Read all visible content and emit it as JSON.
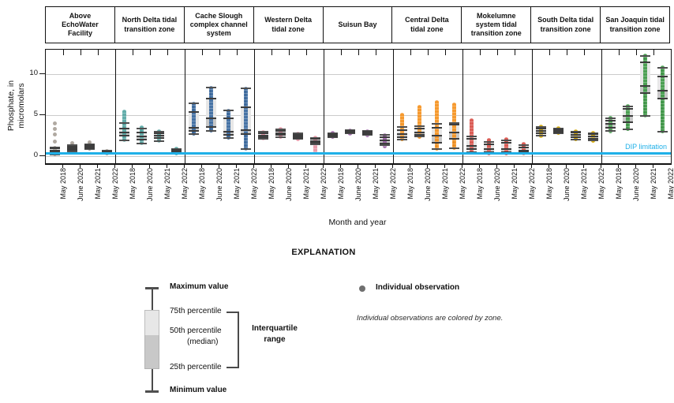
{
  "labels": {
    "explanation_title": "EXPLANATION",
    "x_axis_title": "Month and year"
  },
  "axes": {
    "y_label_line1": "Phosphate, in",
    "y_label_line2": "micromolars"
  },
  "chart_data": {
    "type": "boxplot",
    "title": "",
    "xlabel": "Month and year",
    "ylabel": "Phosphate, in micromolars",
    "categories": [
      "May 2018",
      "June 2020",
      "May 2021",
      "May 2022"
    ],
    "ylim": [
      -0.9,
      13
    ],
    "yticks": [
      0,
      5,
      10
    ],
    "grid": true,
    "legend_position": "below",
    "reference_line": {
      "label": "DIP limitation",
      "value": 0.35,
      "color": "#1fb0e8"
    },
    "zones": [
      {
        "name": "Above EchoWater Facility",
        "color": "#9c948a",
        "boxes": [
          {
            "whislo": 0.2,
            "q1": 0.45,
            "med": 0.7,
            "q3": 0.95,
            "whishi": 1.1,
            "dots": [
              0.2,
              1.1
            ],
            "outliers": [
              1.8,
              2.6,
              3.3,
              4.0
            ]
          },
          {
            "whislo": 0.55,
            "q1": 0.75,
            "med": 0.95,
            "q3": 1.15,
            "whishi": 1.35,
            "dots": [
              0.55,
              1.35
            ],
            "outliers": [
              1.55
            ]
          },
          {
            "whislo": 0.9,
            "q1": 1.0,
            "med": 1.15,
            "q3": 1.3,
            "whishi": 1.45,
            "dots": [
              0.9,
              1.45
            ],
            "outliers": [
              1.65
            ]
          },
          {
            "whislo": 0.3,
            "q1": 0.4,
            "med": 0.5,
            "q3": 0.6,
            "whishi": 0.7,
            "dots": [
              0.3,
              0.7
            ],
            "outliers": []
          }
        ]
      },
      {
        "name": "North Delta tidal transition zone",
        "color": "#56a7a3",
        "boxes": [
          {
            "whislo": 1.9,
            "q1": 2.5,
            "med": 2.9,
            "q3": 3.4,
            "whishi": 4.0,
            "dots": [
              1.9,
              5.5
            ],
            "outliers": []
          },
          {
            "whislo": 1.5,
            "q1": 2.0,
            "med": 2.4,
            "q3": 2.9,
            "whishi": 3.4,
            "dots": [
              1.5,
              3.6
            ],
            "outliers": []
          },
          {
            "whislo": 1.8,
            "q1": 2.2,
            "med": 2.5,
            "q3": 2.75,
            "whishi": 3.0,
            "dots": [
              1.8,
              3.1
            ],
            "outliers": []
          },
          {
            "whislo": 0.3,
            "q1": 0.45,
            "med": 0.6,
            "q3": 0.75,
            "whishi": 0.9,
            "dots": [
              0.3,
              1.0
            ],
            "outliers": []
          }
        ]
      },
      {
        "name": "Cache Slough complex channel system",
        "color": "#3a6aa0",
        "boxes": [
          {
            "whislo": 2.7,
            "q1": 3.1,
            "med": 3.5,
            "q3": 5.4,
            "whishi": 6.4,
            "dots": [
              2.7,
              6.4
            ],
            "outliers": []
          },
          {
            "whislo": 3.1,
            "q1": 3.6,
            "med": 4.6,
            "q3": 7.0,
            "whishi": 8.4,
            "dots": [
              3.1,
              8.4
            ],
            "outliers": []
          },
          {
            "whislo": 2.2,
            "q1": 2.6,
            "med": 3.0,
            "q3": 4.6,
            "whishi": 5.6,
            "dots": [
              2.2,
              5.6
            ],
            "outliers": []
          },
          {
            "whislo": 0.9,
            "q1": 2.7,
            "med": 3.2,
            "q3": 6.0,
            "whishi": 8.3,
            "dots": [
              0.9,
              8.3
            ],
            "outliers": []
          }
        ]
      },
      {
        "name": "Western Delta tidal zone",
        "color": "#e795a6",
        "boxes": [
          {
            "whislo": 2.1,
            "q1": 2.3,
            "med": 2.5,
            "q3": 2.75,
            "whishi": 2.95,
            "dots": [
              2.1,
              3.0
            ],
            "outliers": []
          },
          {
            "whislo": 2.3,
            "q1": 2.55,
            "med": 2.8,
            "q3": 3.1,
            "whishi": 3.3,
            "dots": [
              2.3,
              3.35
            ],
            "outliers": []
          },
          {
            "whislo": 2.1,
            "q1": 2.25,
            "med": 2.4,
            "q3": 2.6,
            "whishi": 2.75,
            "dots": [
              2.05,
              2.8
            ],
            "outliers": []
          },
          {
            "whislo": 1.4,
            "q1": 1.6,
            "med": 1.85,
            "q3": 2.1,
            "whishi": 2.25,
            "dots": [
              0.45,
              2.3
            ],
            "outliers": []
          }
        ]
      },
      {
        "name": "Suisun Bay",
        "color": "#9c62a6",
        "boxes": [
          {
            "whislo": 2.3,
            "q1": 2.4,
            "med": 2.55,
            "q3": 2.7,
            "whishi": 2.8,
            "dots": [
              2.3,
              2.85
            ],
            "outliers": []
          },
          {
            "whislo": 2.75,
            "q1": 2.85,
            "med": 2.95,
            "q3": 3.1,
            "whishi": 3.2,
            "dots": [
              2.7,
              3.2
            ],
            "outliers": []
          },
          {
            "whislo": 2.55,
            "q1": 2.7,
            "med": 2.8,
            "q3": 2.95,
            "whishi": 3.05,
            "dots": [
              2.5,
              3.05
            ],
            "outliers": []
          },
          {
            "whislo": 1.3,
            "q1": 1.55,
            "med": 1.9,
            "q3": 2.35,
            "whishi": 2.6,
            "dots": [
              1.2,
              2.6
            ],
            "outliers": []
          }
        ]
      },
      {
        "name": "Central Delta tidal zone",
        "color": "#f6921e",
        "boxes": [
          {
            "whislo": 2.0,
            "q1": 2.3,
            "med": 2.7,
            "q3": 3.2,
            "whishi": 3.6,
            "dots": [
              2.0,
              5.1
            ],
            "outliers": []
          },
          {
            "whislo": 2.4,
            "q1": 2.6,
            "med": 2.9,
            "q3": 3.4,
            "whishi": 3.7,
            "dots": [
              2.3,
              6.1
            ],
            "outliers": []
          },
          {
            "whislo": 0.9,
            "q1": 1.6,
            "med": 2.5,
            "q3": 3.5,
            "whishi": 3.9,
            "dots": [
              0.9,
              6.6
            ],
            "outliers": []
          },
          {
            "whislo": 1.0,
            "q1": 2.1,
            "med": 2.9,
            "q3": 3.8,
            "whishi": 4.0,
            "dots": [
              1.0,
              6.3
            ],
            "outliers": []
          }
        ]
      },
      {
        "name": "Mokelumne system tidal transition zone",
        "color": "#d85048",
        "boxes": [
          {
            "whislo": 0.45,
            "q1": 0.85,
            "med": 1.25,
            "q3": 2.1,
            "whishi": 2.4,
            "dots": [
              0.45,
              4.4
            ],
            "outliers": []
          },
          {
            "whislo": 0.3,
            "q1": 0.5,
            "med": 0.9,
            "q3": 1.4,
            "whishi": 1.7,
            "dots": [
              0.3,
              2.0
            ],
            "outliers": []
          },
          {
            "whislo": 0.25,
            "q1": 0.45,
            "med": 0.9,
            "q3": 1.6,
            "whishi": 1.9,
            "dots": [
              0.25,
              2.1
            ],
            "outliers": []
          },
          {
            "whislo": 0.3,
            "q1": 0.45,
            "med": 0.7,
            "q3": 1.1,
            "whishi": 1.35,
            "dots": [
              0.25,
              1.5
            ],
            "outliers": []
          }
        ]
      },
      {
        "name": "South Delta tidal transition zone",
        "color": "#d6a800",
        "boxes": [
          {
            "whislo": 2.5,
            "q1": 2.8,
            "med": 3.1,
            "q3": 3.4,
            "whishi": 3.6,
            "dots": [
              2.45,
              3.65
            ],
            "outliers": []
          },
          {
            "whislo": 2.8,
            "q1": 2.9,
            "med": 3.1,
            "q3": 3.25,
            "whishi": 3.4,
            "dots": [
              2.75,
              3.45
            ],
            "outliers": []
          },
          {
            "whislo": 2.0,
            "q1": 2.35,
            "med": 2.6,
            "q3": 2.85,
            "whishi": 3.0,
            "dots": [
              2.0,
              3.05
            ],
            "outliers": []
          },
          {
            "whislo": 1.9,
            "q1": 2.15,
            "med": 2.4,
            "q3": 2.65,
            "whishi": 2.8,
            "dots": [
              1.85,
              2.85
            ],
            "outliers": []
          }
        ]
      },
      {
        "name": "San Joaquin tidal transition zone",
        "color": "#3f9a47",
        "boxes": [
          {
            "whislo": 3.1,
            "q1": 3.5,
            "med": 3.9,
            "q3": 4.3,
            "whishi": 4.6,
            "dots": [
              3.0,
              4.75
            ],
            "outliers": []
          },
          {
            "whislo": 3.3,
            "q1": 4.1,
            "med": 4.9,
            "q3": 5.8,
            "whishi": 6.1,
            "dots": [
              3.3,
              6.2
            ],
            "outliers": []
          },
          {
            "whislo": 4.9,
            "q1": 7.7,
            "med": 8.6,
            "q3": 11.4,
            "whishi": 12.2,
            "dots": [
              4.9,
              12.3
            ],
            "outliers": []
          },
          {
            "whislo": 3.0,
            "q1": 7.0,
            "med": 8.0,
            "q3": 9.7,
            "whishi": 10.8,
            "dots": [
              3.0,
              10.9
            ],
            "outliers": []
          }
        ]
      }
    ]
  },
  "legend": {
    "max_label": "Maximum value",
    "p75_label": "75th percentile",
    "p50_label": "50th percentile",
    "median_label": "(median)",
    "p25_label": "25th percentile",
    "min_label": "Minimum value",
    "iqr_label_line1": "Interquartile",
    "iqr_label_line2": "range",
    "observation_label": "Individual observation",
    "note": "Individual observations are colored by zone."
  }
}
